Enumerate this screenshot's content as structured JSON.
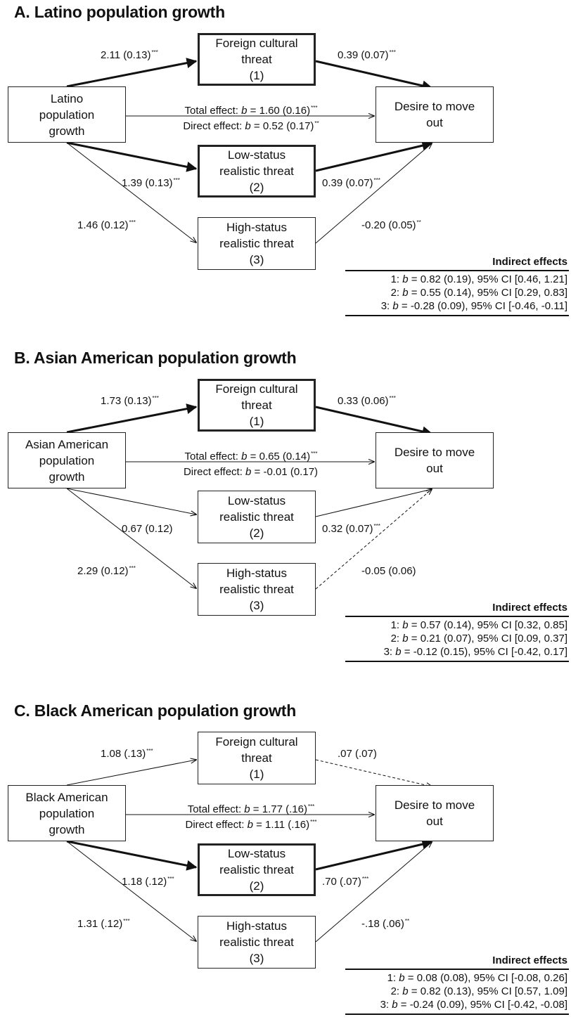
{
  "panels": [
    {
      "title": "A. Latino population growth",
      "source": "Latino\npopulation\ngrowth",
      "mediators": [
        "Foreign cultural\nthreat\n(1)",
        "Low-status\nrealistic threat\n(2)",
        "High-status\nrealistic threat\n(3)"
      ],
      "outcome": "Desire to move\nout",
      "total": {
        "pre": "Total effect: ",
        "b": "b",
        "post": " = 1.60 (0.16)",
        "sig": "***"
      },
      "direct": {
        "pre": "Direct effect: ",
        "b": "b",
        "post": " = 0.52 (0.17)",
        "sig": "**"
      },
      "a_paths": [
        {
          "text": "2.11 (0.13)",
          "sig": "***",
          "style": "bold"
        },
        {
          "text": "1.39 (0.13)",
          "sig": "***",
          "style": "bold"
        },
        {
          "text": "1.46 (0.12)",
          "sig": "***",
          "style": "thin"
        }
      ],
      "b_paths": [
        {
          "text": "0.39 (0.07)",
          "sig": "***",
          "style": "bold"
        },
        {
          "text": "0.39 (0.07)",
          "sig": "***",
          "style": "bold"
        },
        {
          "text": "-0.20 (0.05)",
          "sig": "**",
          "style": "thin"
        }
      ],
      "mediator_bold": [
        true,
        true,
        false
      ],
      "indirect_title": "Indirect effects",
      "indirect": [
        {
          "pre": "1: ",
          "b": "b",
          "post": " = 0.82 (0.19), 95% CI [0.46, 1.21]"
        },
        {
          "pre": "2: ",
          "b": "b",
          "post": " = 0.55 (0.14), 95% CI [0.29, 0.83]"
        },
        {
          "pre": "3: ",
          "b": "b",
          "post": " = -0.28 (0.09), 95% CI [-0.46, -0.11]"
        }
      ]
    },
    {
      "title": "B. Asian American population growth",
      "source": "Asian American\npopulation\ngrowth",
      "mediators": [
        "Foreign cultural\nthreat\n(1)",
        "Low-status\nrealistic threat\n(2)",
        "High-status\nrealistic threat\n(3)"
      ],
      "outcome": "Desire to move\nout",
      "total": {
        "pre": "Total effect: ",
        "b": "b",
        "post": " = 0.65 (0.14)",
        "sig": "***"
      },
      "direct": {
        "pre": "Direct effect: ",
        "b": "b",
        "post": " = -0.01 (0.17)",
        "sig": ""
      },
      "a_paths": [
        {
          "text": "1.73 (0.13)",
          "sig": "***",
          "style": "bold"
        },
        {
          "text": "0.67 (0.12)",
          "sig": "",
          "style": "thin"
        },
        {
          "text": "2.29 (0.12)",
          "sig": "***",
          "style": "thin"
        }
      ],
      "b_paths": [
        {
          "text": "0.33 (0.06)",
          "sig": "***",
          "style": "bold"
        },
        {
          "text": "0.32 (0.07)",
          "sig": "***",
          "style": "thin"
        },
        {
          "text": "-0.05 (0.06)",
          "sig": "",
          "style": "dashed"
        }
      ],
      "mediator_bold": [
        true,
        false,
        false
      ],
      "indirect_title": "Indirect effects",
      "indirect": [
        {
          "pre": "1: ",
          "b": "b",
          "post": " = 0.57 (0.14), 95% CI [0.32, 0.85]"
        },
        {
          "pre": "2: ",
          "b": "b",
          "post": " = 0.21 (0.07), 95% CI [0.09, 0.37]"
        },
        {
          "pre": "3: ",
          "b": "b",
          "post": " = -0.12 (0.15), 95% CI [-0.42, 0.17]"
        }
      ]
    },
    {
      "title": "C. Black American population growth",
      "source": "Black American\npopulation\ngrowth",
      "mediators": [
        "Foreign cultural\nthreat\n(1)",
        "Low-status\nrealistic threat\n(2)",
        "High-status\nrealistic threat\n(3)"
      ],
      "outcome": "Desire to move\nout",
      "total": {
        "pre": "Total effect: ",
        "b": "b",
        "post": " = 1.77 (.16)",
        "sig": "***"
      },
      "direct": {
        "pre": "Direct effect: ",
        "b": "b",
        "post": " = 1.11 (.16)",
        "sig": "***"
      },
      "a_paths": [
        {
          "text": "1.08 (.13)",
          "sig": "***",
          "style": "thin"
        },
        {
          "text": "1.18 (.12)",
          "sig": "***",
          "style": "bold"
        },
        {
          "text": "1.31 (.12)",
          "sig": "***",
          "style": "thin"
        }
      ],
      "b_paths": [
        {
          "text": ".07 (.07)",
          "sig": "",
          "style": "dashed"
        },
        {
          "text": ".70 (.07)",
          "sig": "***",
          "style": "bold"
        },
        {
          "text": "-.18 (.06)",
          "sig": "**",
          "style": "thin"
        }
      ],
      "mediator_bold": [
        false,
        true,
        false
      ],
      "indirect_title": "Indirect effects",
      "indirect": [
        {
          "pre": "1: ",
          "b": "b",
          "post": " = 0.08 (0.08), 95% CI [-0.08, 0.26]"
        },
        {
          "pre": "2: ",
          "b": "b",
          "post": " = 0.82 (0.13), 95% CI [0.57, 1.09]"
        },
        {
          "pre": "3: ",
          "b": "b",
          "post": " = -0.24 (0.09), 95% CI [-0.42, -0.08]"
        }
      ]
    }
  ]
}
